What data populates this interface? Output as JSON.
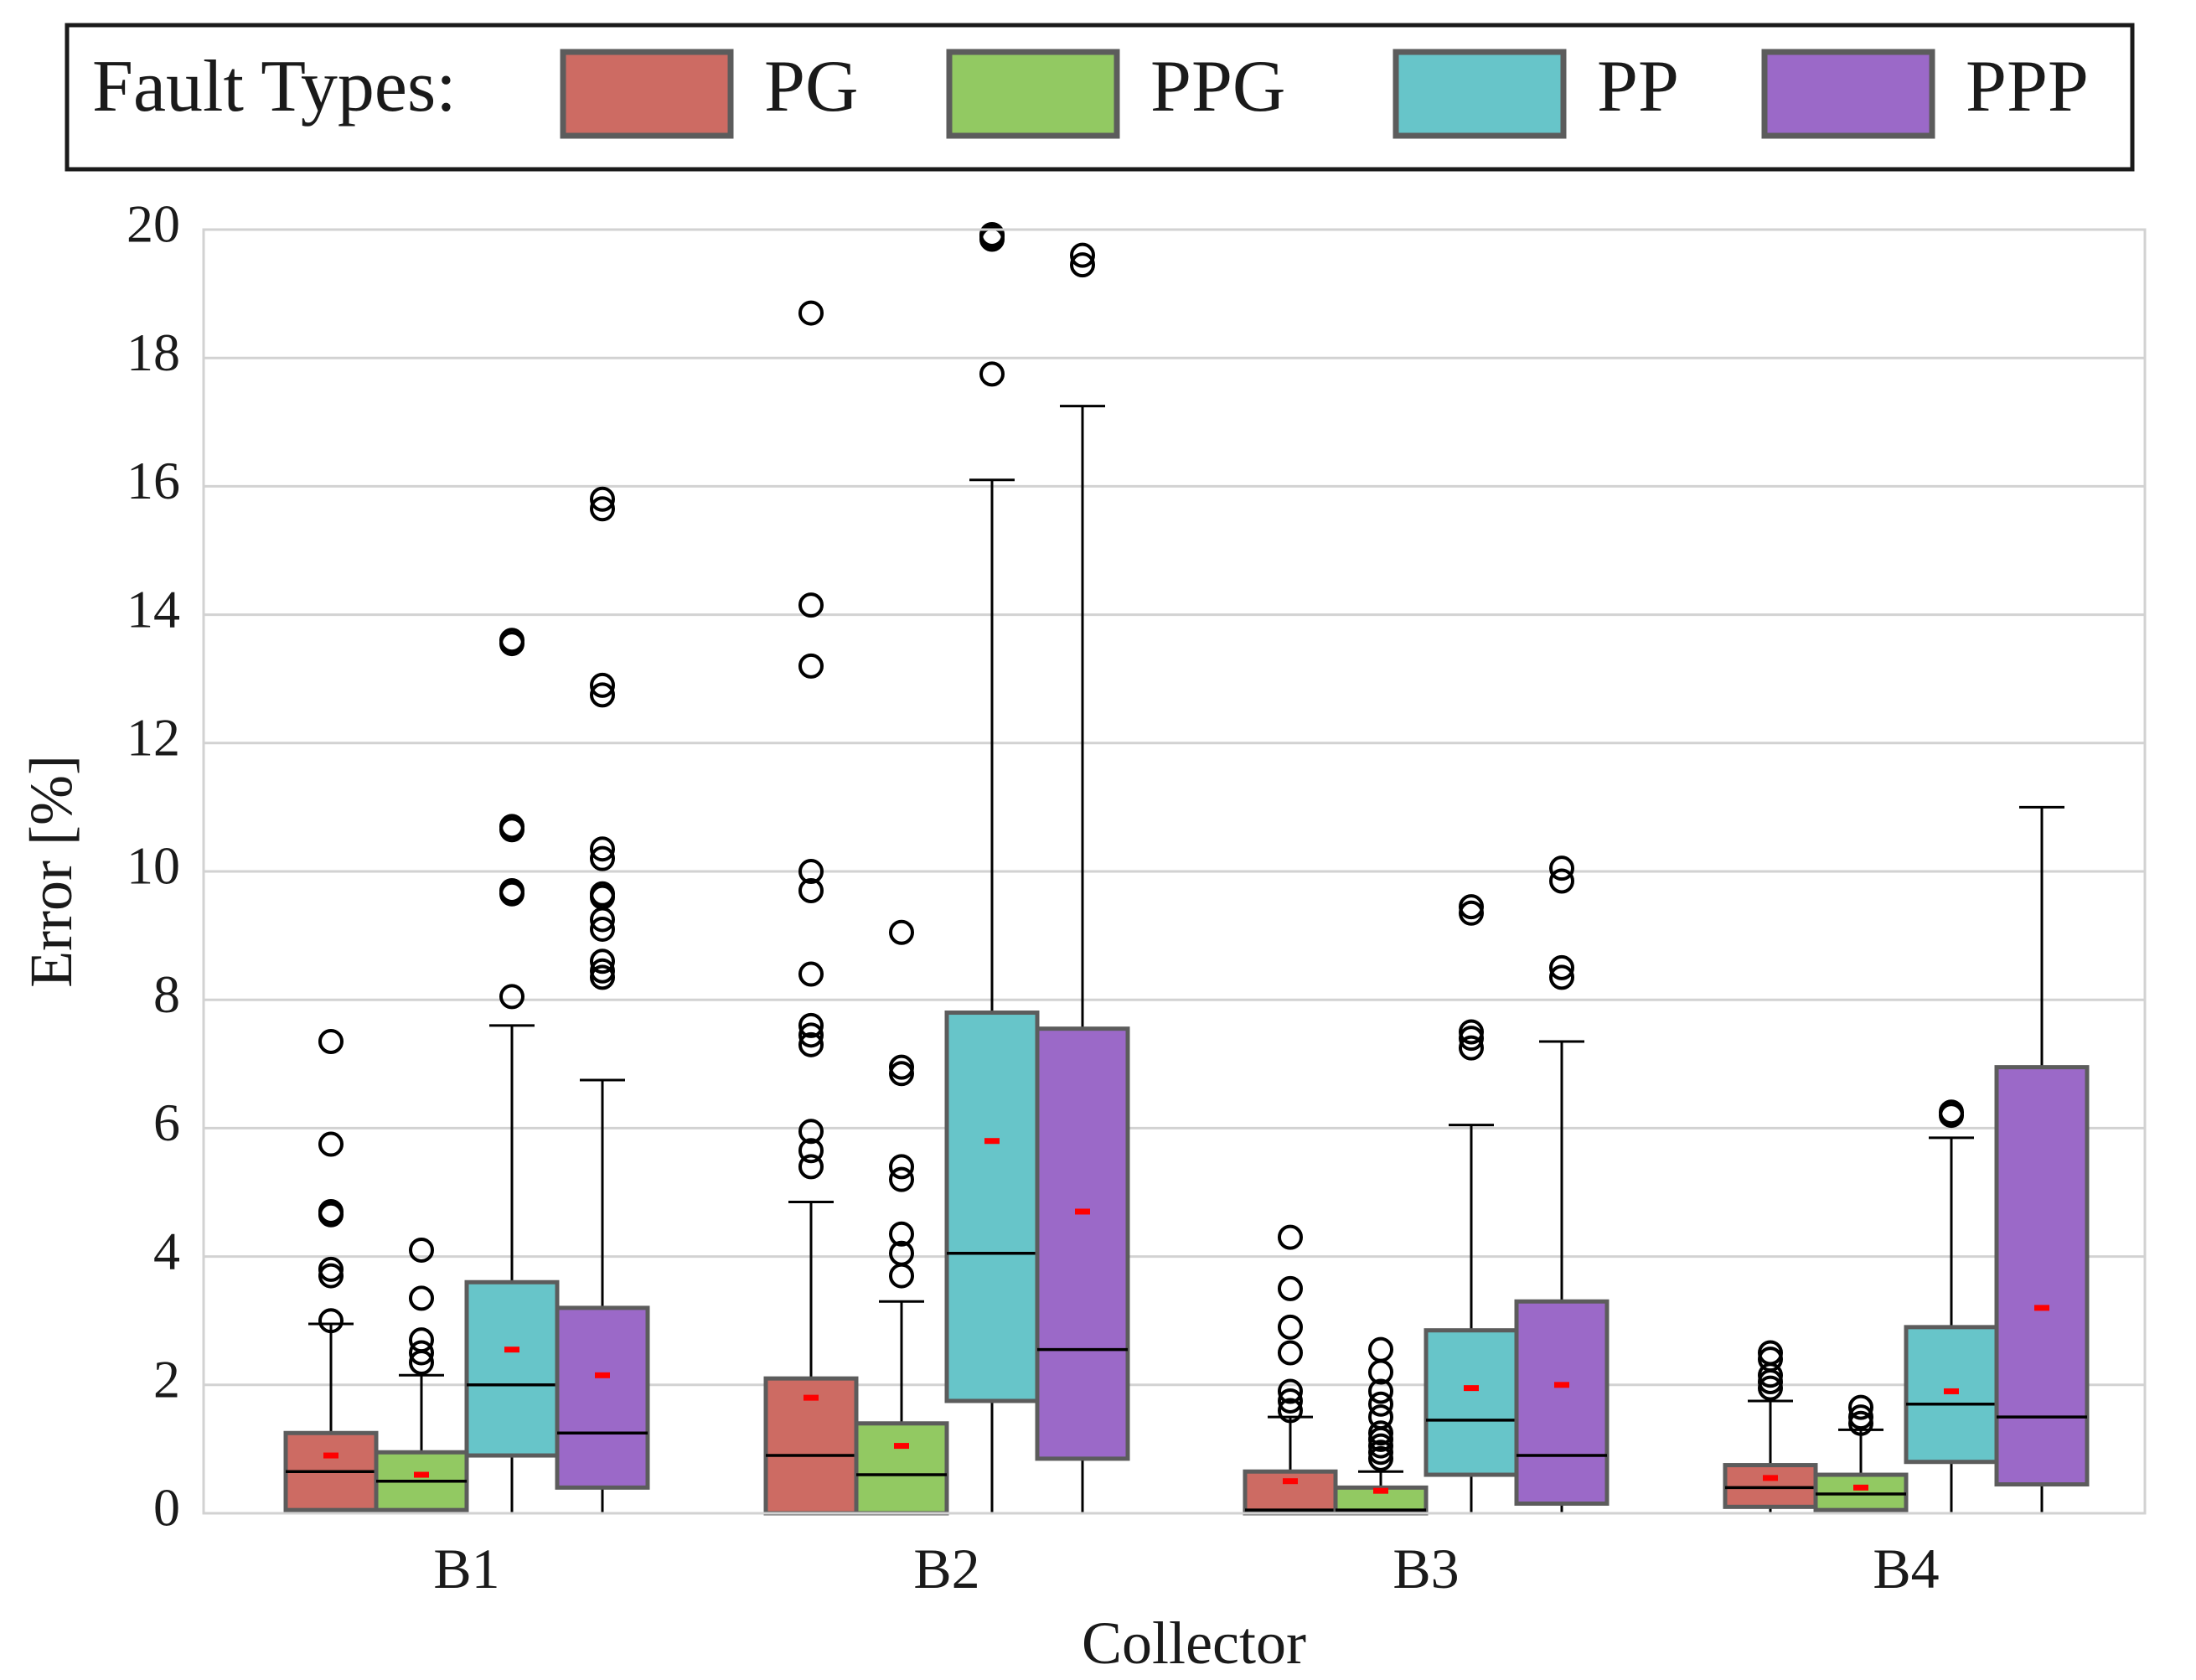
{
  "chart_data": {
    "type": "box",
    "xlabel": "Collector",
    "ylabel": "Error [%]",
    "ylim": [
      0,
      20
    ],
    "yticks": [
      0,
      2,
      4,
      6,
      8,
      10,
      12,
      14,
      16,
      18,
      20
    ],
    "grid": "horizontal",
    "legend": {
      "title": "Fault Types:",
      "placement": "top",
      "entries": [
        "PG",
        "PPG",
        "PP",
        "PPP"
      ]
    },
    "categories": [
      "B1",
      "B2",
      "B3",
      "B4"
    ],
    "colors": {
      "PG": "#cd6b63",
      "PPG": "#92c962",
      "PP": "#67c5c9",
      "PPP": "#9b69c8",
      "box_edge": "#5c5c5c",
      "median": "#000000",
      "mean": "#ff0000",
      "grid": "#d2d2d2"
    },
    "series": [
      {
        "name": "PG",
        "boxes": [
          {
            "category": "B1",
            "whislo": 0,
            "q1": 0.05,
            "med": 0.65,
            "mean": 0.9,
            "q3": 1.25,
            "whishi": 2.95,
            "fliers": [
              3.0,
              3.7,
              3.8,
              4.65,
              4.7,
              5.75,
              7.35
            ]
          },
          {
            "category": "B2",
            "whislo": 0,
            "q1": 0,
            "med": 0.9,
            "mean": 1.8,
            "q3": 2.1,
            "whishi": 4.85,
            "fliers": [
              5.4,
              5.65,
              5.95,
              7.3,
              7.45,
              7.6,
              8.4,
              9.7,
              10.0,
              13.2,
              14.15,
              18.7
            ]
          },
          {
            "category": "B3",
            "whislo": 0,
            "q1": 0,
            "med": 0.05,
            "mean": 0.5,
            "q3": 0.65,
            "whishi": 1.5,
            "fliers": [
              1.6,
              1.75,
              1.9,
              2.5,
              2.9,
              3.5,
              4.3
            ]
          },
          {
            "category": "B4",
            "whislo": 0,
            "q1": 0.1,
            "med": 0.4,
            "mean": 0.55,
            "q3": 0.75,
            "whishi": 1.75,
            "fliers": [
              1.95,
              2.05,
              2.15,
              2.4,
              2.5
            ]
          }
        ]
      },
      {
        "name": "PPG",
        "boxes": [
          {
            "category": "B1",
            "whislo": 0,
            "q1": 0.05,
            "med": 0.5,
            "mean": 0.6,
            "q3": 0.95,
            "whishi": 2.15,
            "fliers": [
              2.35,
              2.5,
              2.7,
              3.35,
              4.1
            ]
          },
          {
            "category": "B2",
            "whislo": 0,
            "q1": 0,
            "med": 0.6,
            "mean": 1.05,
            "q3": 1.4,
            "whishi": 3.3,
            "fliers": [
              3.7,
              4.05,
              4.35,
              5.2,
              5.4,
              6.85,
              6.95,
              9.05
            ]
          },
          {
            "category": "B3",
            "whislo": 0,
            "q1": 0,
            "med": 0.05,
            "mean": 0.35,
            "q3": 0.4,
            "whishi": 0.65,
            "fliers": [
              0.85,
              0.95,
              1.05,
              1.15,
              1.25,
              1.5,
              1.7,
              1.9,
              2.2,
              2.55
            ]
          },
          {
            "category": "B4",
            "whislo": 0,
            "q1": 0.05,
            "med": 0.3,
            "mean": 0.4,
            "q3": 0.6,
            "whishi": 1.3,
            "fliers": [
              1.4,
              1.5,
              1.65
            ]
          }
        ]
      },
      {
        "name": "PP",
        "boxes": [
          {
            "category": "B1",
            "whislo": 0,
            "q1": 0.9,
            "med": 2.0,
            "mean": 2.55,
            "q3": 3.6,
            "whishi": 7.6,
            "fliers": [
              8.05,
              9.65,
              9.7,
              10.65,
              10.7,
              13.55,
              13.6
            ]
          },
          {
            "category": "B2",
            "whislo": 0,
            "q1": 1.75,
            "med": 4.05,
            "mean": 5.8,
            "q3": 7.8,
            "whishi": 16.1,
            "fliers": [
              17.75,
              19.85,
              19.9,
              20.0
            ]
          },
          {
            "category": "B3",
            "whislo": 0,
            "q1": 0.6,
            "med": 1.45,
            "mean": 1.95,
            "q3": 2.85,
            "whishi": 6.05,
            "fliers": [
              7.25,
              7.4,
              7.5,
              9.35,
              9.45
            ]
          },
          {
            "category": "B4",
            "whislo": 0,
            "q1": 0.8,
            "med": 1.7,
            "mean": 1.9,
            "q3": 2.9,
            "whishi": 5.85,
            "fliers": [
              6.2,
              6.25
            ]
          }
        ]
      },
      {
        "name": "PPP",
        "boxes": [
          {
            "category": "B1",
            "whislo": 0,
            "q1": 0.4,
            "med": 1.25,
            "mean": 2.15,
            "q3": 3.2,
            "whishi": 6.75,
            "fliers": [
              8.35,
              8.45,
              8.6,
              9.1,
              9.25,
              9.6,
              9.65,
              10.2,
              10.35,
              12.75,
              12.9,
              15.65,
              15.8
            ]
          },
          {
            "category": "B2",
            "whislo": 0,
            "q1": 0.85,
            "med": 2.55,
            "mean": 4.7,
            "q3": 7.55,
            "whishi": 17.25,
            "fliers": [
              19.45,
              19.6
            ]
          },
          {
            "category": "B3",
            "whislo": 0,
            "q1": 0.15,
            "med": 0.9,
            "mean": 2.0,
            "q3": 3.3,
            "whishi": 7.35,
            "fliers": [
              8.35,
              8.5,
              9.85,
              10.05
            ]
          },
          {
            "category": "B4",
            "whislo": 0,
            "q1": 0.45,
            "med": 1.5,
            "mean": 3.2,
            "q3": 6.95,
            "whishi": 11.0,
            "fliers": []
          }
        ]
      }
    ]
  }
}
